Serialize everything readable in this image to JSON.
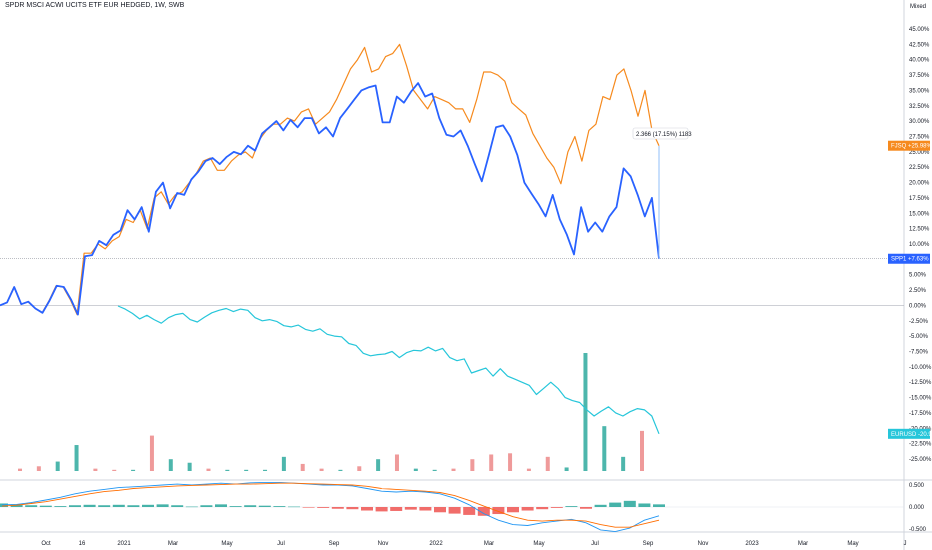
{
  "title": "SPDR MSCI ACWI UCITS ETF EUR HEDGED, 1W, SWB",
  "chart_data": {
    "type": "line",
    "scale_mode": "Mixed",
    "x_ticks": [
      "Oct",
      "16",
      "2021",
      "Mar",
      "May",
      "Jul",
      "Sep",
      "Nov",
      "2022",
      "Mar",
      "May",
      "Jul",
      "Sep",
      "Nov",
      "2023",
      "Mar",
      "May",
      "J"
    ],
    "y_ticks": [
      "45.00%",
      "42.50%",
      "40.00%",
      "37.50%",
      "35.00%",
      "32.50%",
      "30.00%",
      "27.50%",
      "25.00%",
      "22.50%",
      "20.00%",
      "17.50%",
      "15.00%",
      "12.50%",
      "10.00%",
      "7.50%",
      "5.00%",
      "2.50%",
      "0.00%",
      "-2.50%",
      "-5.00%",
      "-7.50%",
      "-10.00%",
      "-12.50%",
      "-15.00%",
      "-17.50%",
      "-20.00%",
      "-22.50%",
      "-25.00%"
    ],
    "ylim": [
      -26,
      47
    ],
    "series": [
      {
        "name": "SPP1",
        "label": "+7.63%",
        "color": "#2962ff",
        "values": [
          0,
          0.5,
          3.0,
          0.2,
          0.6,
          -0.5,
          -1.2,
          0.8,
          3.2,
          3.0,
          1.0,
          -1.5,
          8.0,
          8.2,
          10.5,
          9.8,
          11.5,
          12.2,
          15.5,
          14.0,
          16.0,
          12.0,
          18.5,
          20.0,
          15.8,
          18.3,
          18.0,
          20.5,
          21.8,
          23.5,
          24.0,
          23.0,
          24.2,
          25.0,
          24.6,
          26.0,
          25.2,
          28.0,
          29.0,
          30.0,
          28.5,
          30.2,
          29.0,
          30.5,
          30.5,
          28.0,
          29.0,
          27.5,
          30.5,
          32.0,
          33.5,
          35.0,
          35.5,
          35.8,
          29.8,
          29.8,
          34.0,
          33.0,
          34.8,
          36.2,
          34.0,
          34.5,
          30.5,
          27.8,
          27.5,
          28.5,
          26.0,
          23.0,
          20.2,
          24.5,
          29.0,
          29.3,
          27.5,
          24.5,
          20.0,
          18.2,
          16.5,
          14.5,
          18.0,
          14.0,
          11.5,
          8.3,
          16.0,
          12.0,
          13.5,
          12.0,
          14.5,
          16.0,
          22.3,
          21.0,
          18.0,
          14.5,
          17.5,
          7.6
        ]
      },
      {
        "name": "FJSQ",
        "label": "+25.98%",
        "color": "#f68a1e",
        "values": [
          0,
          0.5,
          3.0,
          0.2,
          0.6,
          -0.5,
          -1.2,
          0.8,
          3.2,
          3.0,
          1.0,
          -1.5,
          8.5,
          8.5,
          10.0,
          9.2,
          10.5,
          11.2,
          14.0,
          13.5,
          15.5,
          12.5,
          17.5,
          18.5,
          16.5,
          18.0,
          18.5,
          20.0,
          21.5,
          23.5,
          24.0,
          22.0,
          22.0,
          23.5,
          24.5,
          25.0,
          24.0,
          27.0,
          28.5,
          29.5,
          29.5,
          30.5,
          30.0,
          31.5,
          32.0,
          29.5,
          30.5,
          31.5,
          33.5,
          36.0,
          38.5,
          40.0,
          42.0,
          38.0,
          38.5,
          40.5,
          41.0,
          42.5,
          39.0,
          35.0,
          33.5,
          32.0,
          34.0,
          33.5,
          33.0,
          32.0,
          32.0,
          29.8,
          33.5,
          38.0,
          38.0,
          37.5,
          36.5,
          33.0,
          32.0,
          31.0,
          28.0,
          26.0,
          24.0,
          22.5,
          19.8,
          25.0,
          27.5,
          23.5,
          28.5,
          29.5,
          34.0,
          33.5,
          37.5,
          38.5,
          35.0,
          30.8,
          35.0,
          28.5,
          26.0
        ]
      },
      {
        "name": "EURUSD",
        "label": "-20.90%",
        "color": "#26c6da",
        "values": [
          -0.1,
          -0.6,
          -1.3,
          -2.2,
          -1.6,
          -2.3,
          -2.9,
          -2.0,
          -1.5,
          -1.3,
          -2.3,
          -2.7,
          -1.9,
          -1.2,
          -0.8,
          -0.5,
          -1.0,
          -0.6,
          -0.8,
          -2.0,
          -2.5,
          -2.3,
          -2.6,
          -3.3,
          -3.5,
          -3.2,
          -3.9,
          -4.2,
          -3.8,
          -4.7,
          -5.0,
          -5.1,
          -6.2,
          -6.5,
          -7.8,
          -8.2,
          -8.0,
          -7.9,
          -7.5,
          -8.5,
          -7.7,
          -7.3,
          -7.4,
          -6.8,
          -7.4,
          -7.0,
          -8.5,
          -9.0,
          -8.7,
          -11.0,
          -10.6,
          -10.2,
          -11.5,
          -10.3,
          -11.5,
          -12.0,
          -12.5,
          -13.0,
          -14.5,
          -13.5,
          -12.5,
          -13.5,
          -15.0,
          -15.5,
          -15.8,
          -17.0,
          -18.0,
          -17.2,
          -16.5,
          -17.5,
          -18.0,
          -17.3,
          -16.8,
          -17.0,
          -18.0,
          -20.9
        ]
      }
    ],
    "volume": {
      "up_color": "#4db6ac",
      "down_color": "#ef9a9a",
      "bars": [
        {
          "v": 2,
          "up": false
        },
        {
          "v": 4,
          "up": false
        },
        {
          "v": 8,
          "up": true
        },
        {
          "v": 22,
          "up": true
        },
        {
          "v": 2,
          "up": false
        },
        {
          "v": 1,
          "up": false
        },
        {
          "v": 1,
          "up": true
        },
        {
          "v": 30,
          "up": false
        },
        {
          "v": 10,
          "up": true
        },
        {
          "v": 7,
          "up": true
        },
        {
          "v": 2,
          "up": false
        },
        {
          "v": 1,
          "up": true
        },
        {
          "v": 1,
          "up": true
        },
        {
          "v": 1,
          "up": true
        },
        {
          "v": 12,
          "up": true
        },
        {
          "v": 6,
          "up": false
        },
        {
          "v": 2,
          "up": false
        },
        {
          "v": 1,
          "up": true
        },
        {
          "v": 4,
          "up": false
        },
        {
          "v": 10,
          "up": true
        },
        {
          "v": 14,
          "up": false
        },
        {
          "v": 2,
          "up": true
        },
        {
          "v": 1,
          "up": true
        },
        {
          "v": 2,
          "up": false
        },
        {
          "v": 10,
          "up": false
        },
        {
          "v": 14,
          "up": false
        },
        {
          "v": 15,
          "up": false
        },
        {
          "v": 2,
          "up": false
        },
        {
          "v": 12,
          "up": false
        },
        {
          "v": 3,
          "up": true
        },
        {
          "v": 100,
          "up": true
        },
        {
          "v": 38,
          "up": true
        },
        {
          "v": 12,
          "up": true
        },
        {
          "v": 34,
          "up": false
        }
      ]
    },
    "macd": {
      "y_ticks": [
        "0.500",
        "0.000",
        "-0.500"
      ],
      "ylim": [
        -0.7,
        0.7
      ],
      "macd_color": "#2196f3",
      "signal_color": "#ff6d00",
      "macd": [
        0.05,
        0.06,
        0.1,
        0.16,
        0.22,
        0.3,
        0.36,
        0.4,
        0.44,
        0.46,
        0.48,
        0.5,
        0.52,
        0.5,
        0.52,
        0.54,
        0.52,
        0.55,
        0.56,
        0.56,
        0.54,
        0.52,
        0.5,
        0.5,
        0.48,
        0.42,
        0.36,
        0.34,
        0.36,
        0.34,
        0.3,
        0.2,
        0.05,
        -0.15,
        -0.3,
        -0.4,
        -0.42,
        -0.36,
        -0.32,
        -0.28,
        -0.36,
        -0.52,
        -0.56,
        -0.48,
        -0.3,
        -0.2
      ],
      "signal": [
        0.02,
        0.04,
        0.08,
        0.12,
        0.18,
        0.24,
        0.3,
        0.35,
        0.38,
        0.42,
        0.44,
        0.46,
        0.48,
        0.49,
        0.5,
        0.51,
        0.52,
        0.52,
        0.53,
        0.54,
        0.54,
        0.53,
        0.52,
        0.51,
        0.5,
        0.47,
        0.42,
        0.4,
        0.38,
        0.36,
        0.33,
        0.26,
        0.15,
        0.02,
        -0.1,
        -0.22,
        -0.3,
        -0.32,
        -0.3,
        -0.3,
        -0.32,
        -0.4,
        -0.46,
        -0.46,
        -0.38,
        -0.3
      ],
      "histogram": [
        0.08,
        0.06,
        0.04,
        0.03,
        0.02,
        0.04,
        0.05,
        0.04,
        0.05,
        0.04,
        0.05,
        0.06,
        0.04,
        0.01,
        0.04,
        0.06,
        0.02,
        0.04,
        0.03,
        0.02,
        0.01,
        -0.01,
        -0.02,
        -0.04,
        -0.05,
        -0.08,
        -0.1,
        -0.09,
        -0.06,
        -0.08,
        -0.12,
        -0.15,
        -0.18,
        -0.2,
        -0.16,
        -0.12,
        -0.08,
        -0.05,
        -0.02,
        0.02,
        -0.04,
        0.05,
        0.1,
        0.14,
        0.08,
        0.06
      ]
    },
    "annotation": "2.366 (17.15%) 1183"
  }
}
